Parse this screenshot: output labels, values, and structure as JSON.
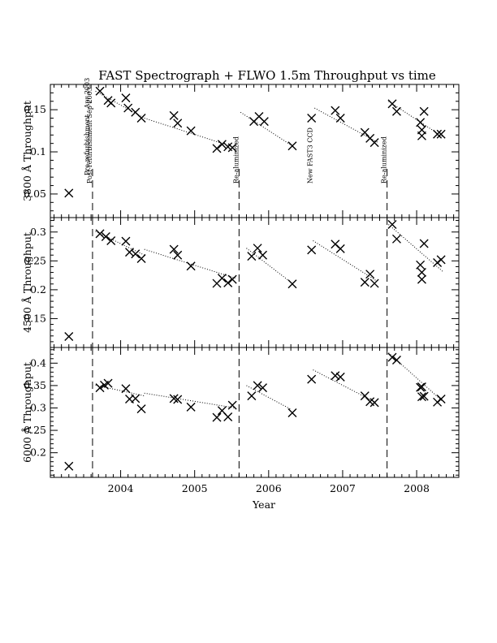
{
  "chart_data": {
    "type": "scatter",
    "title": "FAST Spectrograph + FLWO 1.5m Throughput vs time",
    "xlabel": "Year",
    "xlim": [
      2003.05,
      2008.57
    ],
    "x_ticks": [
      2004,
      2005,
      2006,
      2007,
      2008
    ],
    "events": [
      {
        "x": 2003.62,
        "label": "Post-refurbishment Sep 2003-"
      },
      {
        "x": 2005.6,
        "label": "Re-aluminized"
      },
      {
        "x": 2006.6,
        "label": "New FAST3 CCD"
      },
      {
        "x": 2007.6,
        "label": "Re-aluminized"
      }
    ],
    "panels": [
      {
        "ylabel": "3800 Å Throughput",
        "ylim": [
          0.022,
          0.18
        ],
        "y_ticks": [
          0.05,
          0.1,
          0.15
        ],
        "tick_labels": [
          "0.05",
          "0.1",
          "0.15"
        ],
        "annotation": "Pre-refurbishment - Apr 2003",
        "points": [
          [
            2003.3,
            0.051
          ],
          [
            2003.72,
            0.172
          ],
          [
            2003.83,
            0.161
          ],
          [
            2003.87,
            0.158
          ],
          [
            2004.07,
            0.164
          ],
          [
            2004.1,
            0.152
          ],
          [
            2004.2,
            0.147
          ],
          [
            2004.28,
            0.14
          ],
          [
            2004.72,
            0.143
          ],
          [
            2004.77,
            0.134
          ],
          [
            2004.95,
            0.125
          ],
          [
            2005.3,
            0.104
          ],
          [
            2005.37,
            0.109
          ],
          [
            2005.45,
            0.106
          ],
          [
            2005.51,
            0.105
          ],
          [
            2005.8,
            0.136
          ],
          [
            2005.87,
            0.142
          ],
          [
            2005.94,
            0.136
          ],
          [
            2006.32,
            0.107
          ],
          [
            2006.58,
            0.14
          ],
          [
            2006.9,
            0.149
          ],
          [
            2006.97,
            0.14
          ],
          [
            2007.3,
            0.123
          ],
          [
            2007.37,
            0.116
          ],
          [
            2007.43,
            0.111
          ],
          [
            2007.67,
            0.157
          ],
          [
            2007.73,
            0.148
          ],
          [
            2008.05,
            0.135
          ],
          [
            2008.07,
            0.126
          ],
          [
            2008.07,
            0.119
          ],
          [
            2008.1,
            0.148
          ],
          [
            2008.28,
            0.121
          ],
          [
            2008.33,
            0.121
          ]
        ],
        "fits": [
          [
            [
              2003.66,
              0.172
            ],
            [
              2004.32,
              0.14
            ]
          ],
          [
            [
              2004.32,
              0.14
            ],
            [
              2005.55,
              0.105
            ]
          ],
          [
            [
              2005.62,
              0.147
            ],
            [
              2006.32,
              0.107
            ]
          ],
          [
            [
              2006.62,
              0.152
            ],
            [
              2007.48,
              0.111
            ]
          ],
          [
            [
              2007.62,
              0.16
            ],
            [
              2008.35,
              0.118
            ]
          ]
        ]
      },
      {
        "ylabel": "4500 Å Throughput",
        "ylim": [
          0.1,
          0.325
        ],
        "y_ticks": [
          0.15,
          0.2,
          0.25,
          0.3
        ],
        "tick_labels": [
          "0.15",
          "0.2",
          "0.25",
          "0.3"
        ],
        "points": [
          [
            2003.3,
            0.119
          ],
          [
            2003.72,
            0.297
          ],
          [
            2003.8,
            0.292
          ],
          [
            2003.87,
            0.285
          ],
          [
            2004.07,
            0.284
          ],
          [
            2004.12,
            0.265
          ],
          [
            2004.2,
            0.262
          ],
          [
            2004.28,
            0.254
          ],
          [
            2004.72,
            0.27
          ],
          [
            2004.77,
            0.26
          ],
          [
            2004.95,
            0.241
          ],
          [
            2005.3,
            0.211
          ],
          [
            2005.37,
            0.22
          ],
          [
            2005.45,
            0.212
          ],
          [
            2005.51,
            0.218
          ],
          [
            2005.77,
            0.258
          ],
          [
            2005.85,
            0.272
          ],
          [
            2005.92,
            0.26
          ],
          [
            2006.32,
            0.21
          ],
          [
            2006.58,
            0.269
          ],
          [
            2006.9,
            0.279
          ],
          [
            2006.97,
            0.271
          ],
          [
            2007.3,
            0.213
          ],
          [
            2007.37,
            0.227
          ],
          [
            2007.43,
            0.211
          ],
          [
            2007.67,
            0.313
          ],
          [
            2007.73,
            0.288
          ],
          [
            2008.05,
            0.243
          ],
          [
            2008.07,
            0.23
          ],
          [
            2008.07,
            0.218
          ],
          [
            2008.1,
            0.28
          ],
          [
            2008.28,
            0.247
          ],
          [
            2008.33,
            0.252
          ]
        ],
        "fits": [
          [
            [
              2003.66,
              0.301
            ],
            [
              2004.32,
              0.26
            ]
          ],
          [
            [
              2004.32,
              0.27
            ],
            [
              2005.55,
              0.22
            ]
          ],
          [
            [
              2005.7,
              0.272
            ],
            [
              2006.3,
              0.213
            ]
          ],
          [
            [
              2006.6,
              0.285
            ],
            [
              2007.45,
              0.216
            ]
          ],
          [
            [
              2007.62,
              0.313
            ],
            [
              2008.35,
              0.232
            ]
          ]
        ]
      },
      {
        "ylabel": "6000 Å Throughput",
        "ylim": [
          0.145,
          0.435
        ],
        "y_ticks": [
          0.2,
          0.25,
          0.3,
          0.35,
          0.4
        ],
        "tick_labels": [
          "0.2",
          "0.25",
          "0.3",
          "0.35",
          "0.4"
        ],
        "points": [
          [
            2003.3,
            0.17
          ],
          [
            2003.72,
            0.345
          ],
          [
            2003.78,
            0.351
          ],
          [
            2003.83,
            0.355
          ],
          [
            2004.07,
            0.343
          ],
          [
            2004.12,
            0.32
          ],
          [
            2004.2,
            0.321
          ],
          [
            2004.28,
            0.298
          ],
          [
            2004.72,
            0.321
          ],
          [
            2004.77,
            0.319
          ],
          [
            2004.95,
            0.302
          ],
          [
            2005.3,
            0.279
          ],
          [
            2005.37,
            0.294
          ],
          [
            2005.45,
            0.28
          ],
          [
            2005.51,
            0.306
          ],
          [
            2005.77,
            0.327
          ],
          [
            2005.85,
            0.35
          ],
          [
            2005.92,
            0.345
          ],
          [
            2006.32,
            0.289
          ],
          [
            2006.58,
            0.364
          ],
          [
            2006.9,
            0.372
          ],
          [
            2006.97,
            0.369
          ],
          [
            2007.3,
            0.327
          ],
          [
            2007.37,
            0.314
          ],
          [
            2007.43,
            0.312
          ],
          [
            2007.67,
            0.413
          ],
          [
            2007.73,
            0.407
          ],
          [
            2008.05,
            0.346
          ],
          [
            2008.07,
            0.325
          ],
          [
            2008.07,
            0.347
          ],
          [
            2008.1,
            0.326
          ],
          [
            2008.28,
            0.313
          ],
          [
            2008.33,
            0.32
          ]
        ],
        "fits": [
          [
            [
              2003.66,
              0.351
            ],
            [
              2004.32,
              0.327
            ]
          ],
          [
            [
              2004.32,
              0.333
            ],
            [
              2005.55,
              0.3
            ]
          ],
          [
            [
              2005.7,
              0.35
            ],
            [
              2006.3,
              0.297
            ]
          ],
          [
            [
              2006.6,
              0.385
            ],
            [
              2007.45,
              0.312
            ]
          ],
          [
            [
              2007.62,
              0.423
            ],
            [
              2008.35,
              0.315
            ]
          ]
        ]
      }
    ]
  }
}
